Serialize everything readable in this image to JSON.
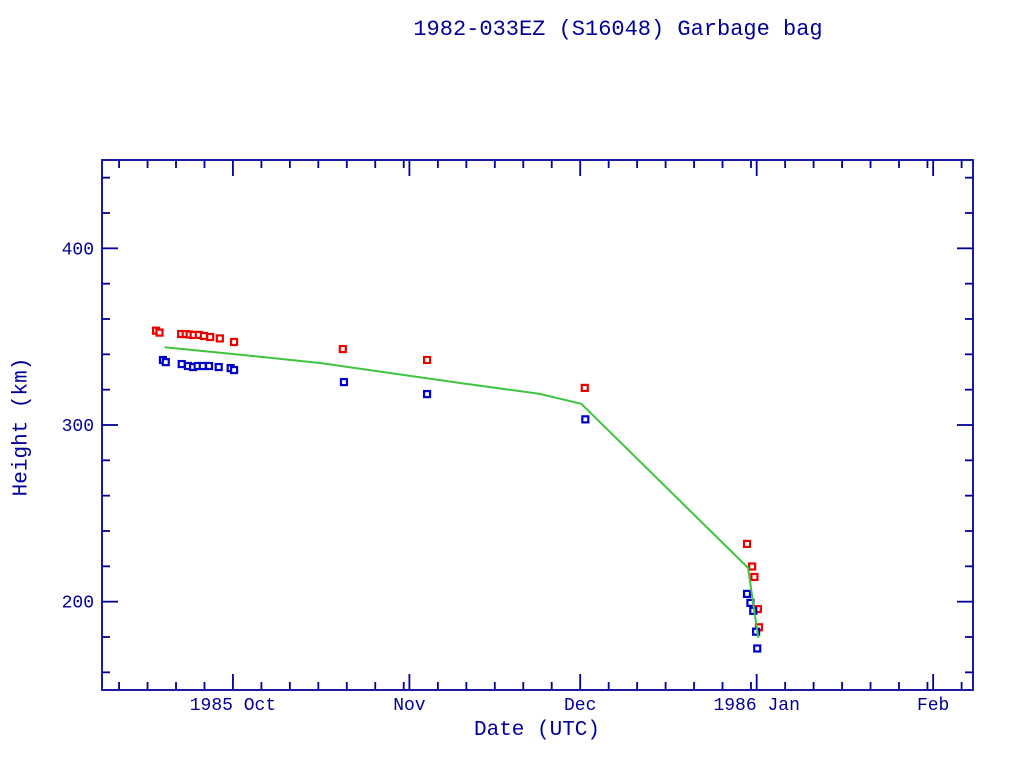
{
  "title": "1982-033EZ (S16048) Garbage bag",
  "colors": {
    "axis": "#000099",
    "text": "#000099",
    "series_red": "#ee0000",
    "series_blue": "#0000cc",
    "fit_line": "#3fc43f",
    "background": "#ffffff"
  },
  "chart_data": {
    "type": "scatter",
    "title": "1982-033EZ (S16048) Garbage bag",
    "xlabel": "Date (UTC)",
    "ylabel": "Height (km)",
    "legend": "none",
    "grid": false,
    "x_axis": {
      "note": "day 0 = 1985 Oct 1",
      "range_days": [
        -23,
        130
      ],
      "major_ticks": [
        {
          "day": 0,
          "label": "1985 Oct"
        },
        {
          "day": 31,
          "label": "Nov"
        },
        {
          "day": 61,
          "label": "Dec"
        },
        {
          "day": 92,
          "label": "1986 Jan"
        },
        {
          "day": 123,
          "label": "Feb"
        }
      ],
      "minor_tick_days": [
        -20,
        -15,
        -10,
        -5,
        5,
        10,
        15,
        20,
        25,
        30,
        36,
        41,
        46,
        51,
        56,
        66,
        71,
        76,
        81,
        86,
        91,
        97,
        102,
        107,
        112,
        117,
        122,
        128
      ]
    },
    "y_axis": {
      "range_km": [
        150,
        450
      ],
      "major_ticks": [
        {
          "km": 400,
          "label": "400"
        },
        {
          "km": 300,
          "label": "300"
        },
        {
          "km": 200,
          "label": "200"
        }
      ],
      "minor_tick_km": [
        160,
        180,
        220,
        240,
        260,
        280,
        320,
        340,
        360,
        380,
        420,
        440
      ]
    },
    "series": [
      {
        "name": "red-squares-upper",
        "marker": "open-square",
        "color": "#ee0000",
        "points": [
          [
            -13.5,
            353.4
          ],
          [
            -12.9,
            352.3
          ],
          [
            -9.1,
            351.5
          ],
          [
            -8.3,
            351.5
          ],
          [
            -7.6,
            351.2
          ],
          [
            -6.9,
            351.0
          ],
          [
            -6.0,
            351.0
          ],
          [
            -5.1,
            350.4
          ],
          [
            -4.0,
            349.8
          ],
          [
            -2.3,
            349.0
          ],
          [
            0.2,
            347.0
          ],
          [
            19.3,
            343.0
          ],
          [
            34.1,
            336.8
          ],
          [
            61.8,
            321.0
          ],
          [
            90.3,
            232.7
          ],
          [
            91.2,
            219.9
          ],
          [
            91.6,
            214.0
          ],
          [
            92.2,
            195.8
          ],
          [
            92.4,
            185.5
          ]
        ]
      },
      {
        "name": "blue-squares-lower",
        "marker": "open-square",
        "color": "#0000cc",
        "points": [
          [
            -12.3,
            336.8
          ],
          [
            -11.8,
            335.6
          ],
          [
            -9.0,
            334.5
          ],
          [
            -7.9,
            333.4
          ],
          [
            -7.0,
            332.8
          ],
          [
            -6.2,
            333.4
          ],
          [
            -5.3,
            333.4
          ],
          [
            -4.2,
            333.4
          ],
          [
            -2.5,
            332.8
          ],
          [
            -0.4,
            332.2
          ],
          [
            0.2,
            331.1
          ],
          [
            19.5,
            324.3
          ],
          [
            34.1,
            317.5
          ],
          [
            61.9,
            303.2
          ],
          [
            90.3,
            204.4
          ],
          [
            90.9,
            199.3
          ],
          [
            91.4,
            194.8
          ],
          [
            91.9,
            183.0
          ],
          [
            92.1,
            173.5
          ]
        ]
      },
      {
        "name": "green-fit-line",
        "marker": "none",
        "type": "line",
        "color": "#3fc43f",
        "points": [
          [
            -12.0,
            344.0
          ],
          [
            0.0,
            340.2
          ],
          [
            15.3,
            335.1
          ],
          [
            39.9,
            323.8
          ],
          [
            53.9,
            317.6
          ],
          [
            61.2,
            312.0
          ],
          [
            90.5,
            219.1
          ],
          [
            91.6,
            194.2
          ],
          [
            92.3,
            179.5
          ]
        ]
      }
    ]
  }
}
